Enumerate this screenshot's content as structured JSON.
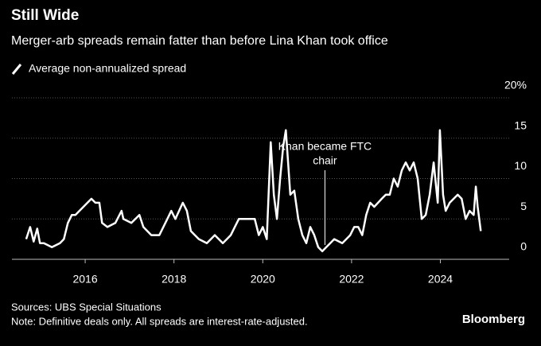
{
  "chart_data": {
    "type": "line",
    "title": "Still Wide",
    "subtitle": "Merger-arb spreads remain fatter than before Lina Khan took office",
    "x": [
      2014.67,
      2014.76,
      2014.84,
      2014.92,
      2014.98,
      2015.07,
      2015.25,
      2015.43,
      2015.52,
      2015.61,
      2015.7,
      2015.78,
      2015.87,
      2016.05,
      2016.14,
      2016.23,
      2016.32,
      2016.38,
      2016.5,
      2016.68,
      2016.82,
      2016.86,
      2017.04,
      2017.22,
      2017.31,
      2017.49,
      2017.67,
      2017.85,
      2017.94,
      2018.03,
      2018.2,
      2018.29,
      2018.38,
      2018.56,
      2018.74,
      2018.92,
      2019.1,
      2019.28,
      2019.37,
      2019.46,
      2019.64,
      2019.82,
      2019.91,
      2020.0,
      2020.09,
      2020.18,
      2020.25,
      2020.32,
      2020.39,
      2020.46,
      2020.52,
      2020.57,
      2020.62,
      2020.71,
      2020.8,
      2020.89,
      2020.98,
      2021.07,
      2021.16,
      2021.25,
      2021.34,
      2021.43,
      2021.52,
      2021.61,
      2021.79,
      2021.97,
      2022.06,
      2022.15,
      2022.24,
      2022.33,
      2022.42,
      2022.51,
      2022.68,
      2022.77,
      2022.86,
      2022.95,
      2023.04,
      2023.13,
      2023.22,
      2023.31,
      2023.4,
      2023.49,
      2023.58,
      2023.67,
      2023.76,
      2023.85,
      2023.94,
      2023.99,
      2024.06,
      2024.12,
      2024.21,
      2024.3,
      2024.39,
      2024.48,
      2024.57,
      2024.66,
      2024.75,
      2024.8,
      2024.84,
      2024.91
    ],
    "series": [
      {
        "name": "Average non-annualized spread",
        "color": "#ffffff",
        "values": [
          2.5,
          4,
          2.2,
          3.8,
          2,
          2,
          1.5,
          2,
          2.5,
          4.5,
          5.5,
          5.5,
          6,
          7,
          7.5,
          7,
          7,
          4.5,
          4,
          4.5,
          6,
          5,
          4.5,
          5.5,
          4,
          3,
          3,
          5,
          6,
          5,
          7,
          6,
          3.5,
          2.5,
          2,
          3,
          2,
          3,
          4,
          5,
          5,
          5,
          3,
          4,
          2.5,
          14.5,
          8,
          5,
          10,
          14,
          16,
          12,
          8,
          8.5,
          5,
          3,
          2,
          4,
          3,
          1.5,
          1,
          1.5,
          2,
          2.5,
          2,
          3,
          4,
          4,
          3,
          5.5,
          7,
          6.5,
          7.5,
          8,
          8,
          10,
          9,
          11,
          12,
          11,
          12,
          10,
          5,
          5.5,
          8,
          12,
          7,
          16,
          8,
          6,
          7,
          7.5,
          8,
          7.5,
          5,
          6,
          5.5,
          9,
          6.5,
          3.5
        ]
      }
    ],
    "xlim": [
      2014.35,
      2025.55
    ],
    "xticks": [
      2016,
      2018,
      2020,
      2022,
      2024
    ],
    "ylim": [
      0,
      20
    ],
    "yticks": [
      0,
      5,
      10,
      15,
      {
        "value": 20,
        "label": "20%"
      }
    ],
    "grid": true,
    "annotation": {
      "lines": [
        "Khan became FTC",
        "chair"
      ],
      "x": 2021.4
    },
    "sources": "Sources: UBS Special Situations",
    "note": "Note: Definitive deals only. All spreads are interest-rate-adjusted.",
    "brand": "Bloomberg"
  }
}
